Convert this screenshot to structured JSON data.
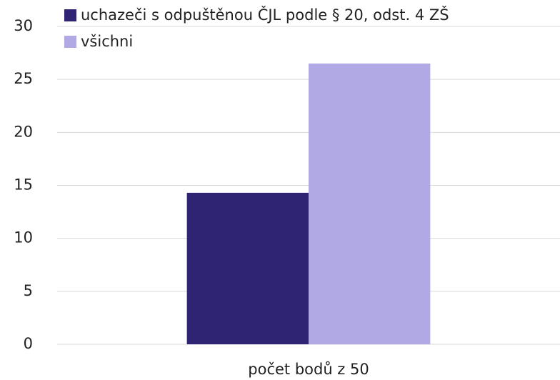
{
  "chart_data": {
    "type": "bar",
    "categories": [
      "počet bodů z 50"
    ],
    "series": [
      {
        "name": "uchazeči s odpuštěnou ČJL podle § 20, odst. 4 ZŠ",
        "color": "#2e2473",
        "values": [
          14.3
        ]
      },
      {
        "name": "všichni",
        "color": "#b0a9e4",
        "values": [
          26.5
        ]
      }
    ],
    "ylim": [
      0,
      30
    ],
    "yticks": [
      0,
      5,
      10,
      15,
      20,
      25,
      30
    ],
    "grid": true,
    "legend": "top-left"
  }
}
